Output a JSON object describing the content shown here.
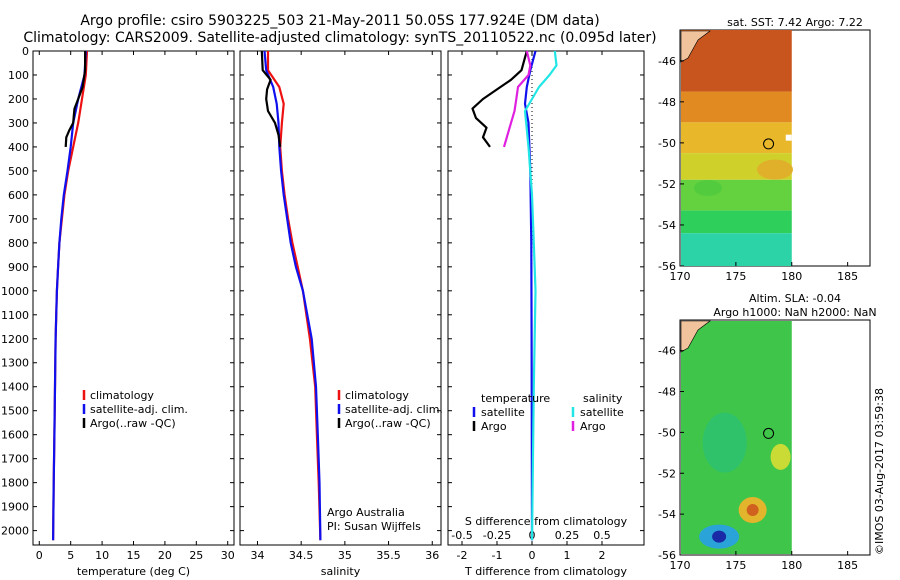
{
  "header": {
    "title_line1": "Argo profile: csiro 5903225_503 21-May-2011 50.05S 177.924E (DM data)",
    "title_line2": "Climatology: CARS2009. Satellite-adjusted climatology: synTS_20110522.nc (0.095d later)"
  },
  "colors": {
    "climatology": "#ee1111",
    "satellite": "#1010ee",
    "argo": "#000000",
    "sal_satellite": "#22e6e6",
    "sal_argo": "#e020e0"
  },
  "depth_ticks": [
    0,
    100,
    200,
    300,
    400,
    500,
    600,
    700,
    800,
    900,
    1000,
    1100,
    1200,
    1300,
    1400,
    1500,
    1600,
    1700,
    1800,
    1900,
    2000
  ],
  "chart_data": [
    {
      "type": "line",
      "xlabel": "temperature (deg C)",
      "xlim": [
        -1,
        31
      ],
      "ylim": [
        2060,
        0
      ],
      "xticks": [
        0,
        5,
        10,
        15,
        20,
        25,
        30
      ],
      "legend": {
        "items": [
          "climatology",
          "satellite-adj. clim.",
          "Argo(..raw -QC)"
        ]
      },
      "series": [
        {
          "name": "climatology",
          "color": "#ee1111",
          "depth": [
            0,
            100,
            200,
            300,
            400,
            500,
            600,
            700,
            800,
            900,
            1000,
            1200,
            1400,
            1600,
            1800,
            2040
          ],
          "values": [
            7.6,
            7.4,
            6.8,
            6.2,
            5.4,
            4.6,
            4.0,
            3.6,
            3.2,
            3.0,
            2.8,
            2.6,
            2.5,
            2.4,
            2.3,
            2.2
          ]
        },
        {
          "name": "satellite-adj. clim.",
          "color": "#1010ee",
          "depth": [
            0,
            100,
            200,
            300,
            400,
            500,
            600,
            700,
            800,
            900,
            1000,
            1200,
            1400,
            1600,
            1800,
            2040
          ],
          "values": [
            7.4,
            7.2,
            6.2,
            5.4,
            5.0,
            4.5,
            3.9,
            3.5,
            3.2,
            3.0,
            2.8,
            2.6,
            2.5,
            2.4,
            2.3,
            2.2
          ]
        },
        {
          "name": "Argo(..raw -QC)",
          "color": "#000000",
          "depth": [
            0,
            80,
            150,
            200,
            240,
            270,
            300,
            330,
            360,
            400
          ],
          "values": [
            7.3,
            7.3,
            6.9,
            6.2,
            5.6,
            5.5,
            5.4,
            4.8,
            4.3,
            4.2
          ]
        }
      ]
    },
    {
      "type": "line",
      "xlabel": "salinity",
      "xlim": [
        33.8,
        36.1
      ],
      "ylim": [
        2060,
        0
      ],
      "xticks": [
        34,
        34.5,
        35,
        35.5,
        36
      ],
      "legend": {
        "items": [
          "climatology",
          "satellite-adj. clim.",
          "Argo(..raw -QC)"
        ]
      },
      "annotation": [
        "Argo Australia",
        "PI: Susan Wijffels"
      ],
      "series": [
        {
          "name": "climatology",
          "color": "#ee1111",
          "depth": [
            0,
            80,
            150,
            220,
            300,
            400,
            500,
            600,
            700,
            800,
            900,
            1000,
            1100,
            1200,
            1400,
            1600,
            1800,
            2040
          ],
          "values": [
            34.12,
            34.12,
            34.25,
            34.3,
            34.28,
            34.26,
            34.28,
            34.31,
            34.35,
            34.4,
            34.46,
            34.52,
            34.56,
            34.6,
            34.66,
            34.68,
            34.7,
            34.72
          ]
        },
        {
          "name": "satellite-adj. clim.",
          "color": "#1010ee",
          "depth": [
            0,
            80,
            150,
            220,
            300,
            400,
            500,
            600,
            700,
            800,
            900,
            1000,
            1100,
            1200,
            1400,
            1600,
            1800,
            2040
          ],
          "values": [
            34.08,
            34.1,
            34.18,
            34.22,
            34.24,
            34.25,
            34.27,
            34.3,
            34.34,
            34.38,
            34.44,
            34.52,
            34.57,
            34.62,
            34.67,
            34.69,
            34.71,
            34.72
          ]
        },
        {
          "name": "Argo(..raw -QC)",
          "color": "#000000",
          "depth": [
            0,
            80,
            120,
            160,
            200,
            250,
            300,
            350,
            400
          ],
          "values": [
            34.05,
            34.06,
            34.15,
            34.11,
            34.1,
            34.12,
            34.2,
            34.24,
            34.26
          ]
        }
      ]
    },
    {
      "type": "line",
      "xlabel": "T difference from climatology",
      "xlabel2": "S difference from climatology",
      "xlim": [
        -2.4,
        3.2
      ],
      "ylim": [
        2060,
        0
      ],
      "xticks": [
        -2,
        -1,
        0,
        1,
        2
      ],
      "xticks_top": [
        -0.5,
        -0.25,
        0,
        0.25,
        0.5
      ],
      "xticks_top_labels": [
        "-0.5",
        "-0.25",
        "0",
        "0.25",
        "0.5"
      ],
      "legend": {
        "temperature_title": "temperature",
        "salinity_title": "salinity",
        "items": [
          "satellite",
          "Argo",
          "satellite",
          "Argo"
        ]
      },
      "series": [
        {
          "name": "satellite",
          "color": "#1010ee",
          "depth": [
            0,
            80,
            150,
            220,
            300,
            500,
            800,
            1200,
            2040
          ],
          "values": [
            0.1,
            -0.05,
            -0.15,
            -0.2,
            -0.1,
            -0.05,
            -0.02,
            -0.01,
            0
          ]
        },
        {
          "name": "Argo",
          "color": "#000000",
          "depth": [
            0,
            80,
            120,
            160,
            200,
            240,
            280,
            320,
            360,
            400
          ],
          "values": [
            -0.15,
            -0.3,
            -0.6,
            -1.0,
            -1.4,
            -1.7,
            -1.6,
            -1.3,
            -1.4,
            -1.2
          ]
        },
        {
          "name": "satellite",
          "color": "#22e6e6",
          "depth": [
            0,
            60,
            100,
            150,
            250,
            400,
            600,
            800,
            1000,
            1400,
            2040
          ],
          "values": [
            0.65,
            0.7,
            0.5,
            0.2,
            -0.2,
            -0.1,
            0.0,
            0.05,
            0.1,
            0.05,
            0.0
          ]
        },
        {
          "name": "Argo",
          "color": "#e020e0",
          "depth": [
            0,
            60,
            100,
            150,
            200,
            250,
            300,
            350,
            400
          ],
          "values": [
            -0.15,
            -0.05,
            -0.1,
            -0.4,
            -0.45,
            -0.5,
            -0.6,
            -0.7,
            -0.8
          ]
        }
      ]
    }
  ],
  "maps": [
    {
      "title": "sat. SST: 7.42 Argo: 7.22",
      "xticks": [
        170,
        175,
        180,
        185
      ],
      "yticks": [
        -46,
        -48,
        -50,
        -52,
        -54,
        -56
      ],
      "marker": {
        "lon": 177.924,
        "lat": -50.05
      }
    },
    {
      "title_line1": "Altim. SLA: -0.04",
      "title_line2": "Argo h1000: NaN h2000: NaN",
      "xticks": [
        170,
        175,
        180,
        185
      ],
      "yticks": [
        -46,
        -48,
        -50,
        -52,
        -54,
        -56
      ],
      "marker": {
        "lon": 177.924,
        "lat": -50.05
      }
    }
  ],
  "stamp": "©IMOS 03-Aug-2017 03:59:38"
}
